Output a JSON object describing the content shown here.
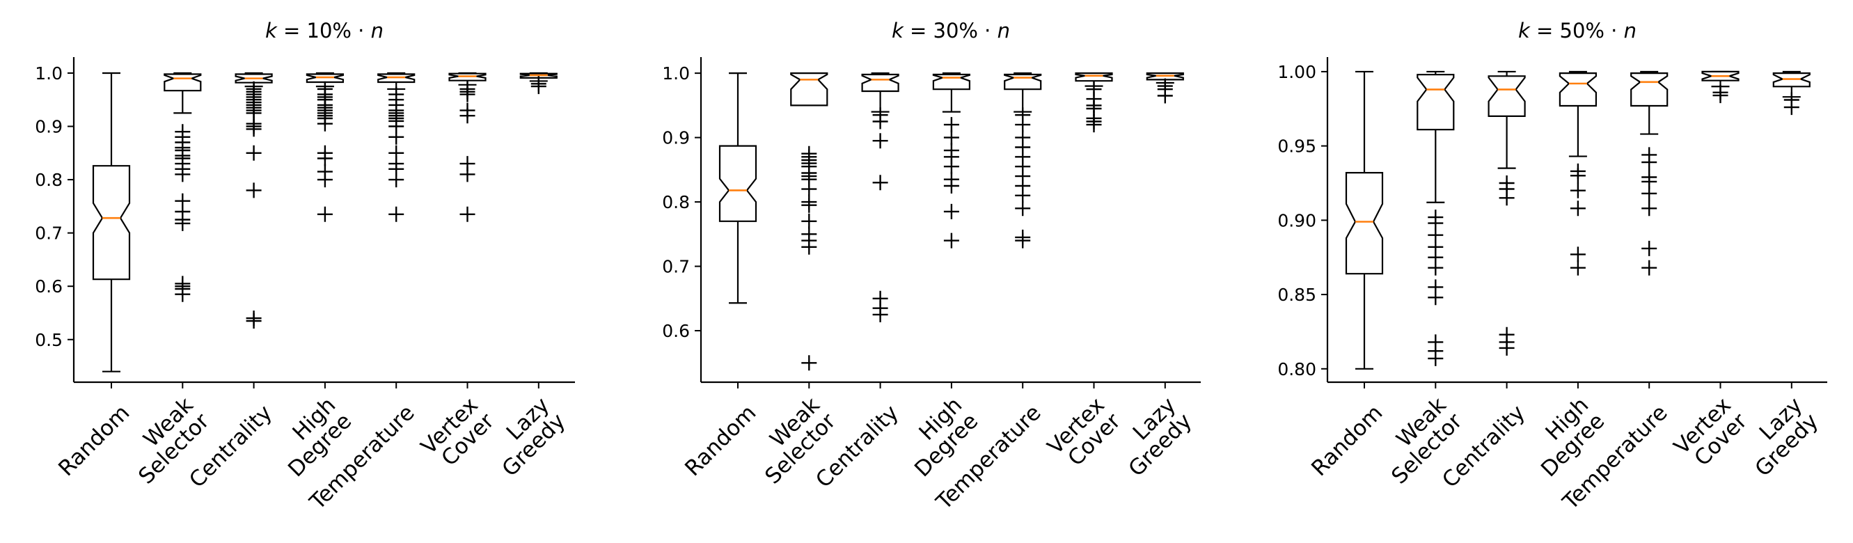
{
  "figure": {
    "type": "boxplot-panels",
    "notched": true
  },
  "colors": {
    "box": "#000000",
    "median": "#ff7f0e",
    "background": "#ffffff"
  },
  "chart_data": [
    {
      "type": "box",
      "title_prefix": "k",
      "title_value": "10%",
      "title_suffix": "n",
      "ylim": [
        0.42,
        1.03
      ],
      "yticks": [
        "0.5",
        "0.6",
        "0.7",
        "0.8",
        "0.9",
        "1.0"
      ],
      "categories": [
        "Random",
        "Weak Selector",
        "Centrality",
        "High Degree",
        "Temperature",
        "Vertex Cover",
        "Lazy Greedy"
      ],
      "category_lines": [
        [
          "Random"
        ],
        [
          "Weak",
          "Selector"
        ],
        [
          "Centrality"
        ],
        [
          "High",
          "Degree"
        ],
        [
          "Temperature"
        ],
        [
          "Vertex",
          "Cover"
        ],
        [
          "Lazy",
          "Greedy"
        ]
      ],
      "boxes": [
        {
          "whislo": 0.44,
          "q1": 0.613,
          "med": 0.728,
          "q3": 0.826,
          "whishi": 1.0,
          "notch": [
            0.7,
            0.756
          ],
          "fliers": []
        },
        {
          "whislo": 0.925,
          "q1": 0.967,
          "med": 0.99,
          "q3": 0.998,
          "whishi": 1.0,
          "notch": [
            0.984,
            0.996
          ],
          "fliers": [
            0.89,
            0.88,
            0.87,
            0.86,
            0.855,
            0.845,
            0.84,
            0.83,
            0.82,
            0.81,
            0.76,
            0.74,
            0.725,
            0.718,
            0.605,
            0.6,
            0.595,
            0.585
          ]
        },
        {
          "whislo": 0.975,
          "q1": 0.982,
          "med": 0.99,
          "q3": 0.998,
          "whishi": 1.0,
          "notch": [
            0.986,
            0.994
          ],
          "fliers": [
            0.97,
            0.965,
            0.96,
            0.955,
            0.95,
            0.945,
            0.94,
            0.935,
            0.93,
            0.925,
            0.905,
            0.9,
            0.895,
            0.85,
            0.78,
            0.54,
            0.535
          ]
        },
        {
          "whislo": 0.975,
          "q1": 0.983,
          "med": 0.992,
          "q3": 0.998,
          "whishi": 1.0,
          "notch": [
            0.988,
            0.996
          ],
          "fliers": [
            0.97,
            0.96,
            0.955,
            0.95,
            0.94,
            0.935,
            0.93,
            0.925,
            0.92,
            0.915,
            0.905,
            0.85,
            0.84,
            0.815,
            0.8,
            0.735
          ]
        },
        {
          "whislo": 0.97,
          "q1": 0.983,
          "med": 0.992,
          "q3": 0.998,
          "whishi": 1.0,
          "notch": [
            0.988,
            0.996
          ],
          "fliers": [
            0.96,
            0.95,
            0.94,
            0.93,
            0.925,
            0.92,
            0.915,
            0.91,
            0.9,
            0.88,
            0.85,
            0.83,
            0.82,
            0.8,
            0.735
          ]
        },
        {
          "whislo": 0.978,
          "q1": 0.986,
          "med": 0.994,
          "q3": 0.999,
          "whishi": 1.0,
          "notch": [
            0.991,
            0.997
          ],
          "fliers": [
            0.97,
            0.965,
            0.96,
            0.93,
            0.92,
            0.83,
            0.81,
            0.735
          ]
        },
        {
          "whislo": 0.985,
          "q1": 0.991,
          "med": 0.996,
          "q3": 0.999,
          "whishi": 1.0,
          "notch": [
            0.994,
            0.998
          ],
          "fliers": [
            0.98,
            0.975
          ]
        }
      ]
    },
    {
      "type": "box",
      "title_prefix": "k",
      "title_value": "30%",
      "title_suffix": "n",
      "ylim": [
        0.52,
        1.025
      ],
      "yticks": [
        "0.6",
        "0.7",
        "0.8",
        "0.9",
        "1.0"
      ],
      "categories": [
        "Random",
        "Weak Selector",
        "Centrality",
        "High Degree",
        "Temperature",
        "Vertex Cover",
        "Lazy Greedy"
      ],
      "category_lines": [
        [
          "Random"
        ],
        [
          "Weak",
          "Selector"
        ],
        [
          "Centrality"
        ],
        [
          "High",
          "Degree"
        ],
        [
          "Temperature"
        ],
        [
          "Vertex",
          "Cover"
        ],
        [
          "Lazy",
          "Greedy"
        ]
      ],
      "boxes": [
        {
          "whislo": 0.643,
          "q1": 0.77,
          "med": 0.818,
          "q3": 0.887,
          "whishi": 1.0,
          "notch": [
            0.8,
            0.836
          ],
          "fliers": []
        },
        {
          "whislo": 0.95,
          "q1": 0.95,
          "med": 0.99,
          "q3": 1.0,
          "whishi": 1.0,
          "notch": [
            0.975,
            0.998
          ],
          "fliers": [
            0.875,
            0.87,
            0.865,
            0.86,
            0.855,
            0.845,
            0.84,
            0.835,
            0.82,
            0.8,
            0.795,
            0.77,
            0.75,
            0.74,
            0.73,
            0.55
          ]
        },
        {
          "whislo": 0.94,
          "q1": 0.972,
          "med": 0.99,
          "q3": 0.998,
          "whishi": 1.0,
          "notch": [
            0.984,
            0.996
          ],
          "fliers": [
            0.935,
            0.925,
            0.895,
            0.83,
            0.65,
            0.635,
            0.625
          ]
        },
        {
          "whislo": 0.94,
          "q1": 0.975,
          "med": 0.993,
          "q3": 0.998,
          "whishi": 1.0,
          "notch": [
            0.988,
            0.997
          ],
          "fliers": [
            0.92,
            0.9,
            0.88,
            0.87,
            0.855,
            0.835,
            0.825,
            0.785,
            0.74
          ]
        },
        {
          "whislo": 0.94,
          "q1": 0.975,
          "med": 0.993,
          "q3": 0.998,
          "whishi": 1.0,
          "notch": [
            0.988,
            0.997
          ],
          "fliers": [
            0.935,
            0.92,
            0.9,
            0.885,
            0.87,
            0.855,
            0.84,
            0.825,
            0.81,
            0.79,
            0.745,
            0.74
          ]
        },
        {
          "whislo": 0.98,
          "q1": 0.988,
          "med": 0.996,
          "q3": 1.0,
          "whishi": 1.0,
          "notch": [
            0.993,
            0.998
          ],
          "fliers": [
            0.975,
            0.96,
            0.95,
            0.945,
            0.93,
            0.925,
            0.92
          ]
        },
        {
          "whislo": 0.985,
          "q1": 0.99,
          "med": 0.996,
          "q3": 1.0,
          "whishi": 1.0,
          "notch": [
            0.993,
            0.998
          ],
          "fliers": [
            0.98,
            0.975,
            0.965
          ]
        }
      ]
    },
    {
      "type": "box",
      "title_prefix": "k",
      "title_value": "50%",
      "title_suffix": "n",
      "ylim": [
        0.791,
        1.0098
      ],
      "yticks": [
        "0.80",
        "0.85",
        "0.90",
        "0.95",
        "1.00"
      ],
      "categories": [
        "Random",
        "Weak Selector",
        "Centrality",
        "High Degree",
        "Temperature",
        "Vertex Cover",
        "Lazy Greedy"
      ],
      "category_lines": [
        [
          "Random"
        ],
        [
          "Weak",
          "Selector"
        ],
        [
          "Centrality"
        ],
        [
          "High",
          "Degree"
        ],
        [
          "Temperature"
        ],
        [
          "Vertex",
          "Cover"
        ],
        [
          "Lazy",
          "Greedy"
        ]
      ],
      "boxes": [
        {
          "whislo": 0.8,
          "q1": 0.864,
          "med": 0.899,
          "q3": 0.932,
          "whishi": 1.0,
          "notch": [
            0.888,
            0.911
          ],
          "fliers": []
        },
        {
          "whislo": 0.912,
          "q1": 0.961,
          "med": 0.988,
          "q3": 0.998,
          "whishi": 1.0,
          "notch": [
            0.98,
            0.996
          ],
          "fliers": [
            0.902,
            0.898,
            0.89,
            0.882,
            0.875,
            0.868,
            0.855,
            0.848,
            0.818,
            0.812,
            0.807
          ]
        },
        {
          "whislo": 0.935,
          "q1": 0.97,
          "med": 0.988,
          "q3": 0.997,
          "whishi": 1.0,
          "notch": [
            0.98,
            0.996
          ],
          "fliers": [
            0.925,
            0.921,
            0.915,
            0.823,
            0.818,
            0.814
          ]
        },
        {
          "whislo": 0.943,
          "q1": 0.977,
          "med": 0.992,
          "q3": 0.999,
          "whishi": 1.0,
          "notch": [
            0.986,
            0.997
          ],
          "fliers": [
            0.933,
            0.93,
            0.92,
            0.908,
            0.877,
            0.868
          ]
        },
        {
          "whislo": 0.958,
          "q1": 0.977,
          "med": 0.993,
          "q3": 0.999,
          "whishi": 1.0,
          "notch": [
            0.988,
            0.997
          ],
          "fliers": [
            0.944,
            0.939,
            0.929,
            0.926,
            0.918,
            0.908,
            0.881,
            0.868
          ]
        },
        {
          "whislo": 0.99,
          "q1": 0.994,
          "med": 0.997,
          "q3": 1.0,
          "whishi": 1.0,
          "notch": [
            0.995,
            0.999
          ],
          "fliers": [
            0.986,
            0.984
          ]
        },
        {
          "whislo": 0.983,
          "q1": 0.99,
          "med": 0.995,
          "q3": 0.999,
          "whishi": 1.0,
          "notch": [
            0.993,
            0.998
          ],
          "fliers": [
            0.981,
            0.976
          ]
        }
      ]
    }
  ]
}
